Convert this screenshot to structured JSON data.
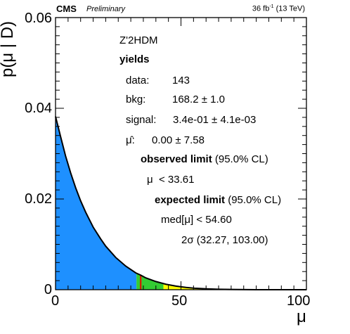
{
  "header": {
    "experiment": "CMS",
    "status": "Preliminary",
    "lumi_prefix": "36 fb",
    "lumi_sup": "-1",
    "energy": "(13 TeV)"
  },
  "chart_data": {
    "type": "area",
    "xlabel": "μ",
    "ylabel": "p(μ | D)",
    "xlim": [
      0,
      100
    ],
    "ylim": [
      0,
      0.06
    ],
    "x_ticks": [
      0,
      50,
      100
    ],
    "y_ticks": [
      "0",
      "0.02",
      "0.04",
      "0.06"
    ],
    "grid": false,
    "series": [
      {
        "x": [
          0,
          2,
          4,
          6,
          8,
          10,
          12,
          15,
          18,
          20,
          24,
          28,
          32,
          34,
          36,
          40,
          44,
          48,
          52,
          56,
          60,
          65,
          70,
          80,
          90,
          100
        ],
        "y": [
          0.0382,
          0.0338,
          0.0295,
          0.0258,
          0.0225,
          0.0196,
          0.0171,
          0.0138,
          0.0112,
          0.0096,
          0.0071,
          0.0052,
          0.0037,
          0.0032,
          0.0026,
          0.0018,
          0.0012,
          0.0008,
          0.0005,
          0.0003,
          0.0002,
          0.0001,
          5e-05,
          1e-05,
          2e-06,
          0.0
        ]
      }
    ],
    "bands": [
      {
        "from": 0,
        "to": 32.27,
        "color": "#1e90ff"
      },
      {
        "from": 32.27,
        "to": 33.61,
        "color": "#33cc33"
      },
      {
        "from": 33.61,
        "to": 34.3,
        "color": "#cc2200"
      },
      {
        "from": 34.3,
        "to": 43.0,
        "color": "#33cc33"
      },
      {
        "from": 43.0,
        "to": 103.0,
        "color": "#ffff00"
      }
    ],
    "annotations": {
      "model": "Z'2HDM",
      "yields_title": "yields",
      "data_label": "data:",
      "data_value": "143",
      "bkg_label": "bkg:",
      "bkg_value": "168.2 ± 1.0",
      "signal_label": "signal:",
      "signal_value": "3.4e-01 ± 4.1e-03",
      "muhat_label": "μ̂:",
      "muhat_value": "0.00 ± 7.58",
      "observed_title": "observed limit",
      "observed_cl": "(95.0% CL)",
      "observed_value": "μ  < 33.61",
      "expected_title": "expected limit",
      "expected_cl": "(95.0% CL)",
      "expected_value": "med[μ] < 54.60",
      "band_value": "2σ (32.27, 103.00)"
    }
  }
}
